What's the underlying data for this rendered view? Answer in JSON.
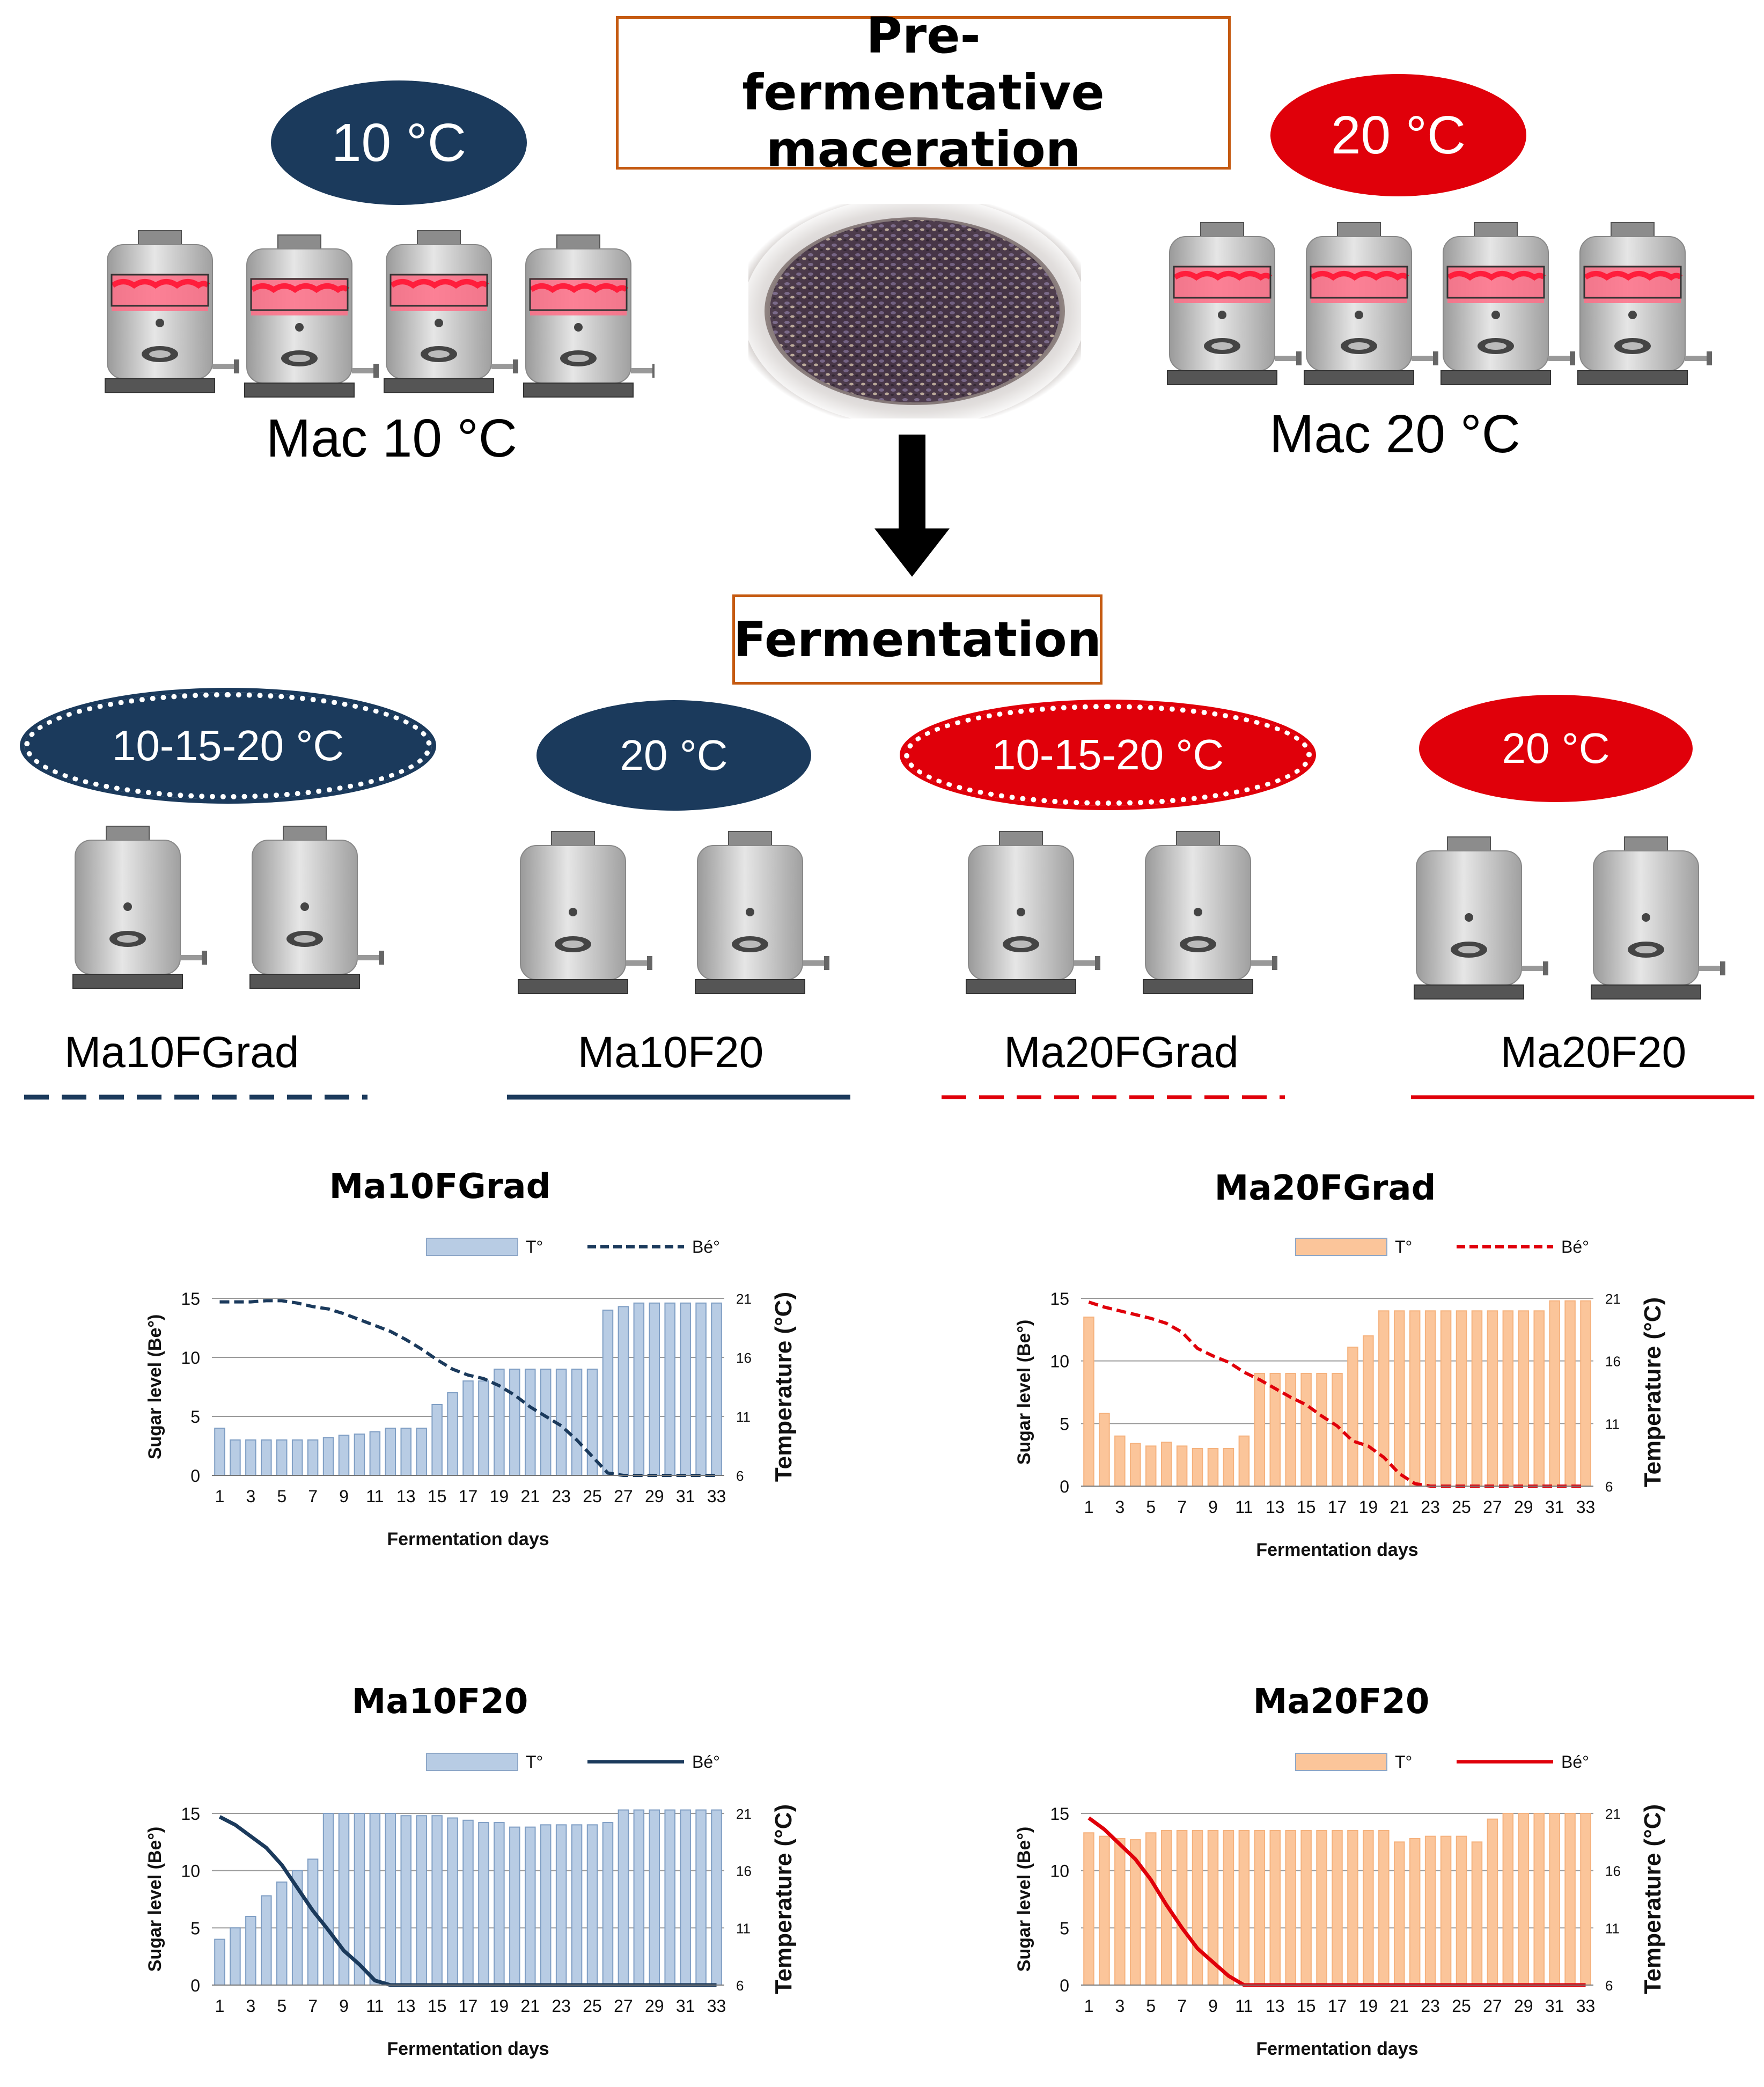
{
  "header": {
    "maceration_title": "Pre-fermentative maceration",
    "fermentation_title": "Fermentation"
  },
  "maceration": {
    "left_temp": "10 °C",
    "right_temp": "20 °C",
    "left_label": "Mac 10 °C",
    "right_label": "Mac 20 °C"
  },
  "fermentation": {
    "groups": [
      {
        "temp": "10-15-20 °C",
        "label": "Ma10FGrad",
        "color": "#1b3a5c",
        "line": "dashed"
      },
      {
        "temp": "20 °C",
        "label": "Ma10F20",
        "color": "#1b3a5c",
        "line": "solid"
      },
      {
        "temp": "10-15-20 °C",
        "label": "Ma20FGrad",
        "color": "#e0000a",
        "line": "dashed"
      },
      {
        "temp": "20 °C",
        "label": "Ma20F20",
        "color": "#e0000a",
        "line": "solid"
      }
    ]
  },
  "colors": {
    "navy": "#1b3a5c",
    "red": "#e0000a",
    "blue_bar": "#b8cce4",
    "orange_bar": "#fbc59a",
    "box_border": "#c55a11"
  },
  "chart_data": [
    {
      "type": "bar",
      "title": "Ma10FGrad",
      "xlabel": "Fermentation days",
      "ylabel": "Sugar level (Be°)",
      "y2label": "Temperature (°C)",
      "legend": [
        "T°",
        "Bé°"
      ],
      "line_style": "dashed",
      "ylim": [
        0,
        15
      ],
      "y2lim": [
        6,
        21
      ],
      "yticks": [
        "0",
        "5",
        "10",
        "15"
      ],
      "y2ticks": [
        "6",
        "11",
        "16",
        "21"
      ],
      "x": [
        1,
        2,
        3,
        4,
        5,
        6,
        7,
        8,
        9,
        10,
        11,
        12,
        13,
        14,
        15,
        16,
        17,
        18,
        19,
        20,
        21,
        22,
        23,
        24,
        25,
        26,
        27,
        28,
        29,
        30,
        31,
        32,
        33
      ],
      "xticks": [
        "1",
        "3",
        "5",
        "7",
        "9",
        "11",
        "13",
        "15",
        "17",
        "19",
        "21",
        "23",
        "25",
        "27",
        "29",
        "31",
        "33"
      ],
      "temperature": [
        10,
        9,
        9,
        9,
        9,
        9,
        9,
        9.2,
        9.4,
        9.5,
        9.7,
        10,
        10,
        10,
        12,
        13,
        14,
        14,
        15,
        15,
        15,
        15,
        15,
        15,
        15,
        20,
        20.3,
        20.6,
        20.6,
        20.6,
        20.6,
        20.6,
        20.6
      ],
      "sugar": [
        14.7,
        14.7,
        14.7,
        14.8,
        14.8,
        14.6,
        14.3,
        14.1,
        13.7,
        13.2,
        12.7,
        12.2,
        11.5,
        10.7,
        9.8,
        9.0,
        8.5,
        8.2,
        7.6,
        6.8,
        5.8,
        5,
        4.2,
        3,
        1.6,
        0.2,
        0,
        0,
        0,
        0,
        0,
        0,
        0
      ]
    },
    {
      "type": "bar",
      "title": "Ma20FGrad",
      "xlabel": "Fermentation days",
      "ylabel": "Sugar level (Be°)",
      "y2label": "Temperature (°C)",
      "legend": [
        "T°",
        "Bé°"
      ],
      "line_style": "dashed",
      "ylim": [
        0,
        15
      ],
      "y2lim": [
        6,
        21
      ],
      "yticks": [
        "0",
        "5",
        "10",
        "15"
      ],
      "y2ticks": [
        "6",
        "11",
        "16",
        "21"
      ],
      "x": [
        1,
        2,
        3,
        4,
        5,
        6,
        7,
        8,
        9,
        10,
        11,
        12,
        13,
        14,
        15,
        16,
        17,
        18,
        19,
        20,
        21,
        22,
        23,
        24,
        25,
        26,
        27,
        28,
        29,
        30,
        31,
        32,
        33
      ],
      "xticks": [
        "1",
        "3",
        "5",
        "7",
        "9",
        "11",
        "13",
        "15",
        "17",
        "19",
        "21",
        "23",
        "25",
        "27",
        "29",
        "31",
        "33"
      ],
      "temperature": [
        19.5,
        11.8,
        10,
        9.4,
        9.2,
        9.5,
        9.2,
        9,
        9,
        9,
        10,
        15,
        15,
        15,
        15,
        15,
        15,
        17.1,
        18,
        20,
        20,
        20,
        20,
        20,
        20,
        20,
        20,
        20,
        20,
        20,
        20.8,
        20.8,
        20.8
      ],
      "sugar": [
        14.7,
        14.3,
        14,
        13.7,
        13.4,
        13,
        12.3,
        11,
        10.4,
        9.9,
        9.1,
        8.5,
        7.8,
        7.1,
        6.5,
        5.6,
        4.8,
        3.6,
        3.2,
        2.3,
        1,
        0.2,
        0,
        0,
        0,
        0,
        0,
        0,
        0,
        0,
        0,
        0,
        0
      ]
    },
    {
      "type": "bar",
      "title": "Ma10F20",
      "xlabel": "Fermentation days",
      "ylabel": "Sugar level (Be°)",
      "y2label": "Temperature (°C)",
      "legend": [
        "T°",
        "Bé°"
      ],
      "line_style": "solid",
      "ylim": [
        0,
        15
      ],
      "y2lim": [
        6,
        21
      ],
      "yticks": [
        "0",
        "5",
        "10",
        "15"
      ],
      "y2ticks": [
        "6",
        "11",
        "16",
        "21"
      ],
      "x": [
        1,
        2,
        3,
        4,
        5,
        6,
        7,
        8,
        9,
        10,
        11,
        12,
        13,
        14,
        15,
        16,
        17,
        18,
        19,
        20,
        21,
        22,
        23,
        24,
        25,
        26,
        27,
        28,
        29,
        30,
        31,
        32,
        33
      ],
      "xticks": [
        "1",
        "3",
        "5",
        "7",
        "9",
        "11",
        "13",
        "15",
        "17",
        "19",
        "21",
        "23",
        "25",
        "27",
        "29",
        "31",
        "33"
      ],
      "temperature": [
        10,
        11,
        12,
        13.8,
        15,
        16,
        17,
        21,
        21,
        21,
        21,
        21,
        20.8,
        20.8,
        20.8,
        20.6,
        20.4,
        20.2,
        20.2,
        19.8,
        19.8,
        20,
        20,
        20,
        20,
        20.2,
        21.3,
        21.3,
        21.3,
        21.3,
        21.3,
        21.3,
        21.3
      ],
      "sugar": [
        14.7,
        14,
        13,
        12,
        10.5,
        8.5,
        6.5,
        4.8,
        3,
        1.8,
        0.4,
        0,
        0,
        0,
        0,
        0,
        0,
        0,
        0,
        0,
        0,
        0,
        0,
        0,
        0,
        0,
        0,
        0,
        0,
        0,
        0,
        0,
        0
      ]
    },
    {
      "type": "bar",
      "title": "Ma20F20",
      "xlabel": "Fermentation days",
      "ylabel": "Sugar level (Be°)",
      "y2label": "Temperature (°C)",
      "legend": [
        "T°",
        "Bé°"
      ],
      "line_style": "solid",
      "ylim": [
        0,
        15
      ],
      "y2lim": [
        6,
        21
      ],
      "yticks": [
        "0",
        "5",
        "10",
        "15"
      ],
      "y2ticks": [
        "6",
        "11",
        "16",
        "21"
      ],
      "x": [
        1,
        2,
        3,
        4,
        5,
        6,
        7,
        8,
        9,
        10,
        11,
        12,
        13,
        14,
        15,
        16,
        17,
        18,
        19,
        20,
        21,
        22,
        23,
        24,
        25,
        26,
        27,
        28,
        29,
        30,
        31,
        32,
        33
      ],
      "xticks": [
        "1",
        "3",
        "5",
        "7",
        "9",
        "11",
        "13",
        "15",
        "17",
        "19",
        "21",
        "23",
        "25",
        "27",
        "29",
        "31",
        "33"
      ],
      "temperature": [
        19.3,
        19,
        18.8,
        18.7,
        19.3,
        19.5,
        19.5,
        19.5,
        19.5,
        19.5,
        19.5,
        19.5,
        19.5,
        19.5,
        19.5,
        19.5,
        19.5,
        19.5,
        19.5,
        19.5,
        18.5,
        18.8,
        19,
        19,
        19,
        18.5,
        20.5,
        21,
        21,
        21,
        21,
        21,
        21
      ],
      "sugar": [
        14.6,
        13.6,
        12.3,
        11,
        9.2,
        7,
        5,
        3.2,
        2,
        0.8,
        0,
        0,
        0,
        0,
        0,
        0,
        0,
        0,
        0,
        0,
        0,
        0,
        0,
        0,
        0,
        0,
        0,
        0,
        0,
        0,
        0,
        0,
        0
      ]
    }
  ]
}
